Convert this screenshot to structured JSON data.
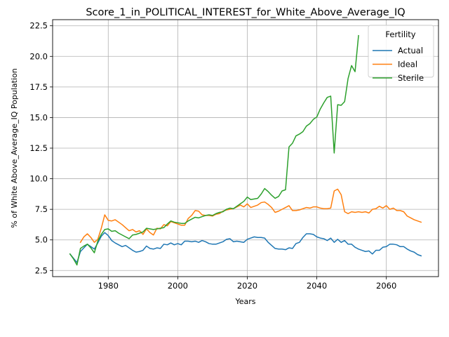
{
  "chart_data": {
    "type": "line",
    "title": "Score_1_in_POLITICAL_INTEREST_for_White_Above_Average_IQ",
    "xlabel": "Years",
    "ylabel": "% of White Above_Average_IQ Population",
    "xlim": [
      1964,
      2075
    ],
    "ylim": [
      2.0,
      23.0
    ],
    "xticks": [
      1980,
      2000,
      2020,
      2040,
      2060
    ],
    "yticks": [
      2.5,
      5.0,
      7.5,
      10.0,
      12.5,
      15.0,
      17.5,
      20.0,
      22.5
    ],
    "ytick_labels": [
      "2.5",
      "5.0",
      "7.5",
      "10.0",
      "12.5",
      "15.0",
      "17.5",
      "20.0",
      "22.5"
    ],
    "grid": true,
    "legend": {
      "title": "Fertility",
      "position": "top-right"
    },
    "series": [
      {
        "name": "Actual",
        "color": "#1f77b4",
        "points": [
          [
            1969,
            3.85
          ],
          [
            1970,
            3.5
          ],
          [
            1971,
            3.15
          ],
          [
            1972,
            4.05
          ],
          [
            1973,
            4.35
          ],
          [
            1974,
            4.65
          ],
          [
            1975,
            4.45
          ],
          [
            1976,
            4.25
          ],
          [
            1977,
            4.75
          ],
          [
            1978,
            5.3
          ],
          [
            1979,
            5.6
          ],
          [
            1980,
            5.35
          ],
          [
            1981,
            4.95
          ],
          [
            1982,
            4.75
          ],
          [
            1983,
            4.6
          ],
          [
            1984,
            4.45
          ],
          [
            1985,
            4.55
          ],
          [
            1986,
            4.35
          ],
          [
            1987,
            4.15
          ],
          [
            1988,
            4.0
          ],
          [
            1989,
            4.05
          ],
          [
            1990,
            4.15
          ],
          [
            1991,
            4.5
          ],
          [
            1992,
            4.3
          ],
          [
            1993,
            4.25
          ],
          [
            1994,
            4.35
          ],
          [
            1995,
            4.3
          ],
          [
            1996,
            4.65
          ],
          [
            1997,
            4.6
          ],
          [
            1998,
            4.75
          ],
          [
            1999,
            4.6
          ],
          [
            2000,
            4.7
          ],
          [
            2001,
            4.6
          ],
          [
            2002,
            4.9
          ],
          [
            2003,
            4.9
          ],
          [
            2004,
            4.85
          ],
          [
            2005,
            4.9
          ],
          [
            2006,
            4.8
          ],
          [
            2007,
            4.95
          ],
          [
            2008,
            4.85
          ],
          [
            2009,
            4.7
          ],
          [
            2010,
            4.65
          ],
          [
            2011,
            4.65
          ],
          [
            2012,
            4.75
          ],
          [
            2013,
            4.85
          ],
          [
            2014,
            5.05
          ],
          [
            2015,
            5.1
          ],
          [
            2016,
            4.85
          ],
          [
            2017,
            4.9
          ],
          [
            2018,
            4.85
          ],
          [
            2019,
            4.8
          ],
          [
            2020,
            5.05
          ],
          [
            2021,
            5.15
          ],
          [
            2022,
            5.25
          ],
          [
            2023,
            5.2
          ],
          [
            2024,
            5.2
          ],
          [
            2025,
            5.15
          ],
          [
            2026,
            4.8
          ],
          [
            2027,
            4.55
          ],
          [
            2028,
            4.3
          ],
          [
            2029,
            4.25
          ],
          [
            2030,
            4.25
          ],
          [
            2031,
            4.2
          ],
          [
            2032,
            4.35
          ],
          [
            2033,
            4.3
          ],
          [
            2034,
            4.7
          ],
          [
            2035,
            4.8
          ],
          [
            2036,
            5.2
          ],
          [
            2037,
            5.5
          ],
          [
            2038,
            5.5
          ],
          [
            2039,
            5.45
          ],
          [
            2040,
            5.25
          ],
          [
            2041,
            5.15
          ],
          [
            2042,
            5.1
          ],
          [
            2043,
            4.95
          ],
          [
            2044,
            5.15
          ],
          [
            2045,
            4.8
          ],
          [
            2046,
            5.05
          ],
          [
            2047,
            4.8
          ],
          [
            2048,
            4.95
          ],
          [
            2049,
            4.65
          ],
          [
            2050,
            4.65
          ],
          [
            2051,
            4.4
          ],
          [
            2052,
            4.25
          ],
          [
            2053,
            4.15
          ],
          [
            2054,
            4.05
          ],
          [
            2055,
            4.1
          ],
          [
            2056,
            3.85
          ],
          [
            2057,
            4.15
          ],
          [
            2058,
            4.15
          ],
          [
            2059,
            4.4
          ],
          [
            2060,
            4.45
          ],
          [
            2061,
            4.65
          ],
          [
            2062,
            4.65
          ],
          [
            2063,
            4.6
          ],
          [
            2064,
            4.45
          ],
          [
            2065,
            4.45
          ],
          [
            2066,
            4.25
          ],
          [
            2067,
            4.1
          ],
          [
            2068,
            4.0
          ],
          [
            2069,
            3.8
          ],
          [
            2070,
            3.7
          ]
        ]
      },
      {
        "name": "Ideal",
        "color": "#ff7f0e",
        "points": [
          [
            1972,
            4.8
          ],
          [
            1973,
            5.25
          ],
          [
            1974,
            5.5
          ],
          [
            1975,
            5.2
          ],
          [
            1976,
            4.8
          ],
          [
            1977,
            5.05
          ],
          [
            1978,
            5.95
          ],
          [
            1979,
            7.05
          ],
          [
            1980,
            6.6
          ],
          [
            1981,
            6.55
          ],
          [
            1982,
            6.65
          ],
          [
            1983,
            6.45
          ],
          [
            1984,
            6.25
          ],
          [
            1985,
            6.0
          ],
          [
            1986,
            5.75
          ],
          [
            1987,
            5.85
          ],
          [
            1988,
            5.65
          ],
          [
            1989,
            5.75
          ],
          [
            1990,
            5.45
          ],
          [
            1991,
            5.9
          ],
          [
            1992,
            5.6
          ],
          [
            1993,
            5.4
          ],
          [
            1994,
            5.95
          ],
          [
            1995,
            5.9
          ],
          [
            1996,
            6.25
          ],
          [
            1997,
            6.15
          ],
          [
            1998,
            6.5
          ],
          [
            1999,
            6.4
          ],
          [
            2000,
            6.3
          ],
          [
            2001,
            6.2
          ],
          [
            2002,
            6.2
          ],
          [
            2003,
            6.75
          ],
          [
            2004,
            7.0
          ],
          [
            2005,
            7.4
          ],
          [
            2006,
            7.35
          ],
          [
            2007,
            7.05
          ],
          [
            2008,
            7.0
          ],
          [
            2009,
            7.0
          ],
          [
            2010,
            6.95
          ],
          [
            2011,
            7.1
          ],
          [
            2012,
            7.15
          ],
          [
            2013,
            7.35
          ],
          [
            2014,
            7.45
          ],
          [
            2015,
            7.5
          ],
          [
            2016,
            7.55
          ],
          [
            2017,
            7.7
          ],
          [
            2018,
            7.85
          ],
          [
            2019,
            7.7
          ],
          [
            2020,
            7.95
          ],
          [
            2021,
            7.65
          ],
          [
            2022,
            7.75
          ],
          [
            2023,
            7.85
          ],
          [
            2024,
            8.05
          ],
          [
            2025,
            8.1
          ],
          [
            2026,
            7.9
          ],
          [
            2027,
            7.65
          ],
          [
            2028,
            7.25
          ],
          [
            2029,
            7.35
          ],
          [
            2030,
            7.5
          ],
          [
            2031,
            7.65
          ],
          [
            2032,
            7.8
          ],
          [
            2033,
            7.4
          ],
          [
            2034,
            7.4
          ],
          [
            2035,
            7.45
          ],
          [
            2036,
            7.55
          ],
          [
            2037,
            7.65
          ],
          [
            2038,
            7.6
          ],
          [
            2039,
            7.7
          ],
          [
            2040,
            7.7
          ],
          [
            2041,
            7.6
          ],
          [
            2042,
            7.55
          ],
          [
            2043,
            7.55
          ],
          [
            2044,
            7.6
          ],
          [
            2045,
            9.0
          ],
          [
            2046,
            9.15
          ],
          [
            2047,
            8.7
          ],
          [
            2048,
            7.3
          ],
          [
            2049,
            7.15
          ],
          [
            2050,
            7.3
          ],
          [
            2051,
            7.25
          ],
          [
            2052,
            7.3
          ],
          [
            2053,
            7.25
          ],
          [
            2054,
            7.3
          ],
          [
            2055,
            7.2
          ],
          [
            2056,
            7.5
          ],
          [
            2057,
            7.55
          ],
          [
            2058,
            7.75
          ],
          [
            2059,
            7.6
          ],
          [
            2060,
            7.8
          ],
          [
            2061,
            7.5
          ],
          [
            2062,
            7.6
          ],
          [
            2063,
            7.4
          ],
          [
            2064,
            7.4
          ],
          [
            2065,
            7.3
          ],
          [
            2066,
            6.95
          ],
          [
            2067,
            6.8
          ],
          [
            2068,
            6.65
          ],
          [
            2069,
            6.55
          ],
          [
            2070,
            6.45
          ]
        ]
      },
      {
        "name": "Sterile",
        "color": "#2ca02c",
        "points": [
          [
            1969,
            3.85
          ],
          [
            1970,
            3.45
          ],
          [
            1971,
            2.95
          ],
          [
            1972,
            4.3
          ],
          [
            1973,
            4.5
          ],
          [
            1974,
            4.65
          ],
          [
            1975,
            4.35
          ],
          [
            1976,
            3.95
          ],
          [
            1977,
            4.9
          ],
          [
            1978,
            5.45
          ],
          [
            1979,
            5.85
          ],
          [
            1980,
            5.9
          ],
          [
            1981,
            5.7
          ],
          [
            1982,
            5.75
          ],
          [
            1983,
            5.55
          ],
          [
            1984,
            5.4
          ],
          [
            1985,
            5.25
          ],
          [
            1986,
            5.1
          ],
          [
            1987,
            5.4
          ],
          [
            1988,
            5.45
          ],
          [
            1989,
            5.55
          ],
          [
            1990,
            5.65
          ],
          [
            1991,
            5.95
          ],
          [
            1992,
            5.9
          ],
          [
            1993,
            5.85
          ],
          [
            1994,
            5.9
          ],
          [
            1995,
            5.95
          ],
          [
            1996,
            6.0
          ],
          [
            1997,
            6.3
          ],
          [
            1998,
            6.55
          ],
          [
            1999,
            6.45
          ],
          [
            2000,
            6.4
          ],
          [
            2001,
            6.35
          ],
          [
            2002,
            6.35
          ],
          [
            2003,
            6.55
          ],
          [
            2004,
            6.7
          ],
          [
            2005,
            6.85
          ],
          [
            2006,
            6.8
          ],
          [
            2007,
            6.9
          ],
          [
            2008,
            7.0
          ],
          [
            2009,
            7.05
          ],
          [
            2010,
            7.0
          ],
          [
            2011,
            7.15
          ],
          [
            2012,
            7.25
          ],
          [
            2013,
            7.3
          ],
          [
            2014,
            7.5
          ],
          [
            2015,
            7.6
          ],
          [
            2016,
            7.55
          ],
          [
            2017,
            7.75
          ],
          [
            2018,
            7.95
          ],
          [
            2019,
            8.15
          ],
          [
            2020,
            8.5
          ],
          [
            2021,
            8.3
          ],
          [
            2022,
            8.35
          ],
          [
            2023,
            8.4
          ],
          [
            2024,
            8.75
          ],
          [
            2025,
            9.2
          ],
          [
            2026,
            8.95
          ],
          [
            2027,
            8.65
          ],
          [
            2028,
            8.4
          ],
          [
            2029,
            8.55
          ],
          [
            2030,
            9.0
          ],
          [
            2031,
            9.1
          ],
          [
            2032,
            12.6
          ],
          [
            2033,
            12.9
          ],
          [
            2034,
            13.5
          ],
          [
            2035,
            13.65
          ],
          [
            2036,
            13.85
          ],
          [
            2037,
            14.3
          ],
          [
            2038,
            14.5
          ],
          [
            2039,
            14.85
          ],
          [
            2040,
            15.05
          ],
          [
            2041,
            15.7
          ],
          [
            2042,
            16.2
          ],
          [
            2043,
            16.65
          ],
          [
            2044,
            16.75
          ],
          [
            2045,
            12.1
          ],
          [
            2046,
            16.05
          ],
          [
            2047,
            16.0
          ],
          [
            2048,
            16.3
          ],
          [
            2049,
            18.2
          ],
          [
            2050,
            19.25
          ],
          [
            2051,
            18.75
          ],
          [
            2052,
            21.7
          ]
        ]
      }
    ]
  }
}
